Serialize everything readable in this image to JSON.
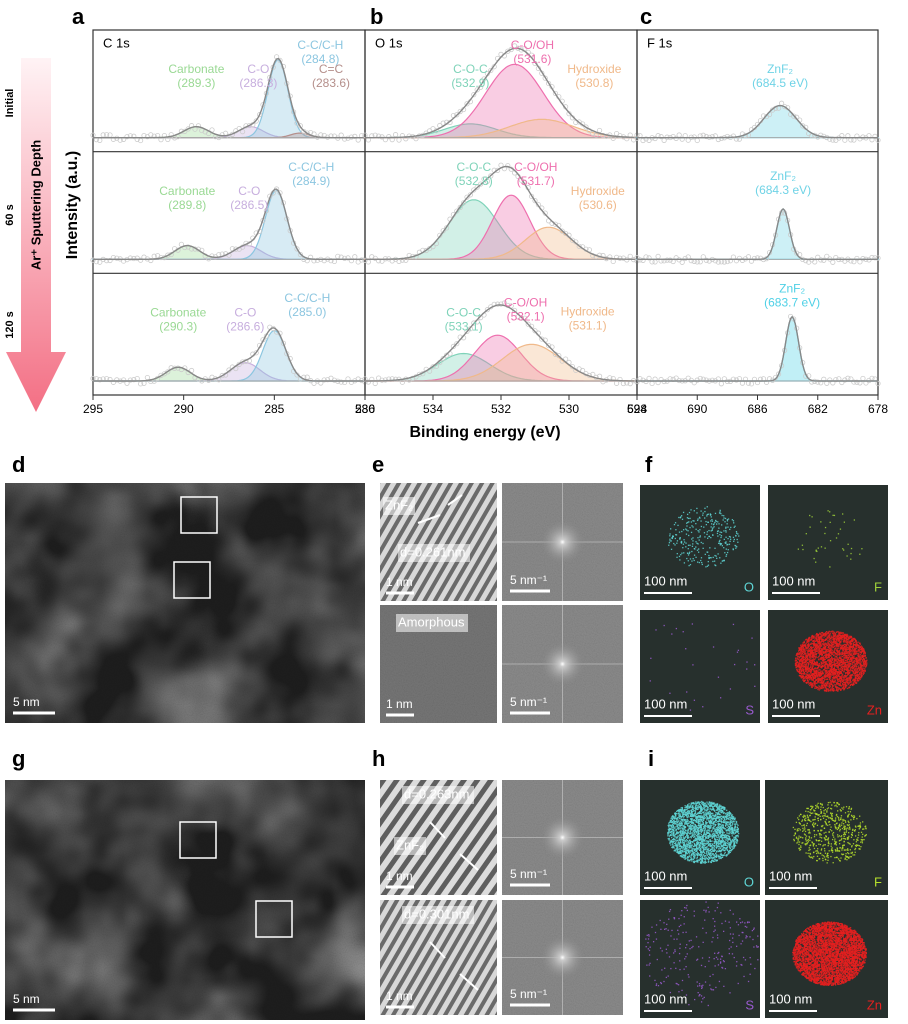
{
  "panel_labels": [
    "a",
    "b",
    "c",
    "d",
    "e",
    "f",
    "g",
    "h",
    "i"
  ],
  "depth_axis": {
    "title": "Ar⁺ Sputtering Depth",
    "levels": [
      "Initial",
      "60 s",
      "120 s"
    ]
  },
  "y_label": "Intensity (a.u.)",
  "x_label": "Binding energy (eV)",
  "chart_data": [
    {
      "type": "xps",
      "title": "C 1s",
      "xlim": [
        295,
        280
      ],
      "xticks": [
        295,
        290,
        285,
        280
      ],
      "rows": [
        {
          "peaks": [
            {
              "name": "Carbonate",
              "center": 289.3,
              "value_label": "(289.3)",
              "height": 0.12,
              "fwhm": 1.6,
              "color": "#9ad994"
            },
            {
              "name": "C-O",
              "center": 286.3,
              "value_label": "(286.3)",
              "height": 0.12,
              "fwhm": 1.6,
              "color": "#c7aede"
            },
            {
              "name": "C-C/C-H",
              "center": 284.8,
              "value_label": "(284.8)",
              "height": 0.85,
              "fwhm": 1.3,
              "color": "#8cc6e0"
            },
            {
              "name": "C=C",
              "center": 283.6,
              "value_label": "(283.6)",
              "height": 0.05,
              "fwhm": 1.2,
              "color": "#b58f8b"
            }
          ]
        },
        {
          "peaks": [
            {
              "name": "Carbonate",
              "center": 289.8,
              "value_label": "(289.8)",
              "height": 0.15,
              "fwhm": 1.6,
              "color": "#9ad994"
            },
            {
              "name": "C-O",
              "center": 286.5,
              "value_label": "(286.5)",
              "height": 0.15,
              "fwhm": 1.8,
              "color": "#c7aede"
            },
            {
              "name": "C-C/C-H",
              "center": 284.9,
              "value_label": "(284.9)",
              "height": 0.75,
              "fwhm": 1.4,
              "color": "#8cc6e0"
            }
          ]
        },
        {
          "peaks": [
            {
              "name": "Carbonate",
              "center": 290.3,
              "value_label": "(290.3)",
              "height": 0.15,
              "fwhm": 1.6,
              "color": "#9ad994"
            },
            {
              "name": "C-O",
              "center": 286.6,
              "value_label": "(286.6)",
              "height": 0.2,
              "fwhm": 1.9,
              "color": "#c7aede"
            },
            {
              "name": "C-C/C-H",
              "center": 285.0,
              "value_label": "(285.0)",
              "height": 0.55,
              "fwhm": 1.5,
              "color": "#8cc6e0"
            }
          ]
        }
      ]
    },
    {
      "type": "xps",
      "title": "O 1s",
      "xlim": [
        536,
        528
      ],
      "xticks": [
        536,
        534,
        532,
        530,
        528
      ],
      "rows": [
        {
          "peaks": [
            {
              "name": "C-O-C",
              "center": 532.9,
              "value_label": "(532.9)",
              "height": 0.15,
              "fwhm": 1.8,
              "color": "#7fd3b9"
            },
            {
              "name": "C-O/OH",
              "center": 531.6,
              "value_label": "(531.6)",
              "height": 0.8,
              "fwhm": 2.0,
              "color": "#ee6fae"
            },
            {
              "name": "Hydroxide",
              "center": 530.8,
              "value_label": "(530.8)",
              "height": 0.2,
              "fwhm": 2.2,
              "color": "#f0b98a"
            }
          ]
        },
        {
          "peaks": [
            {
              "name": "C-O-C",
              "center": 532.8,
              "value_label": "(532.8)",
              "height": 0.65,
              "fwhm": 1.7,
              "color": "#7fd3b9"
            },
            {
              "name": "C-O/OH",
              "center": 531.7,
              "value_label": "(531.7)",
              "height": 0.7,
              "fwhm": 1.3,
              "color": "#ee6fae"
            },
            {
              "name": "Hydroxide",
              "center": 530.6,
              "value_label": "(530.6)",
              "height": 0.35,
              "fwhm": 1.6,
              "color": "#f0b98a"
            }
          ]
        },
        {
          "peaks": [
            {
              "name": "C-O-C",
              "center": 533.1,
              "value_label": "(533.1)",
              "height": 0.3,
              "fwhm": 1.8,
              "color": "#7fd3b9"
            },
            {
              "name": "C-O/OH",
              "center": 532.1,
              "value_label": "(532.1)",
              "height": 0.5,
              "fwhm": 1.6,
              "color": "#ee6fae"
            },
            {
              "name": "Hydroxide",
              "center": 531.1,
              "value_label": "(531.1)",
              "height": 0.4,
              "fwhm": 2.0,
              "color": "#f0b98a"
            }
          ]
        }
      ]
    },
    {
      "type": "xps",
      "title": "F 1s",
      "xlim": [
        694,
        678
      ],
      "xticks": [
        694,
        690,
        686,
        682,
        678
      ],
      "rows": [
        {
          "peaks": [
            {
              "name": "ZnF₂",
              "center": 684.5,
              "value_label": "(684.5 eV)",
              "height": 0.35,
              "fwhm": 2.5,
              "color": "#6fd3e6"
            }
          ]
        },
        {
          "peaks": [
            {
              "name": "ZnF₂",
              "center": 684.3,
              "value_label": "(684.3 eV)",
              "height": 0.55,
              "fwhm": 1.0,
              "color": "#6fd3e6"
            }
          ]
        },
        {
          "peaks": [
            {
              "name": "ZnF₂",
              "center": 683.7,
              "value_label": "(683.7 eV)",
              "height": 0.7,
              "fwhm": 1.0,
              "color": "#4ed0e6"
            }
          ]
        }
      ]
    }
  ],
  "images": {
    "d": {
      "scale_bar": "5 nm"
    },
    "e": [
      {
        "label": "ZnF₂",
        "spacing": "d=0.261nm",
        "scale_bar": "1 nm",
        "fft_scale_bar": "5 nm⁻¹"
      },
      {
        "label": "Amorphous",
        "scale_bar": "1 nm",
        "fft_scale_bar": "5 nm⁻¹"
      }
    ],
    "f": [
      {
        "element": "O",
        "color": "#5fd6d6",
        "scale_bar": "100 nm"
      },
      {
        "element": "F",
        "color": "#9fd13a",
        "scale_bar": "100 nm"
      },
      {
        "element": "S",
        "color": "#9a5bd0",
        "scale_bar": "100 nm"
      },
      {
        "element": "Zn",
        "color": "#e52020",
        "scale_bar": "100 nm"
      }
    ],
    "g": {
      "scale_bar": "5 nm"
    },
    "h": [
      {
        "spacing": "d=0.263nm",
        "label": "ZnF₂",
        "scale_bar": "1 nm",
        "fft_scale_bar": "5 nm⁻¹"
      },
      {
        "spacing": "d=0.301nm",
        "scale_bar": "1 nm",
        "fft_scale_bar": "5 nm⁻¹"
      }
    ],
    "i": [
      {
        "element": "O",
        "color": "#5fd6d6",
        "scale_bar": "100 nm"
      },
      {
        "element": "F",
        "color": "#b6df2c",
        "scale_bar": "100 nm"
      },
      {
        "element": "S",
        "color": "#9a5bd0",
        "scale_bar": "100 nm"
      },
      {
        "element": "Zn",
        "color": "#e52020",
        "scale_bar": "100 nm"
      }
    ]
  }
}
